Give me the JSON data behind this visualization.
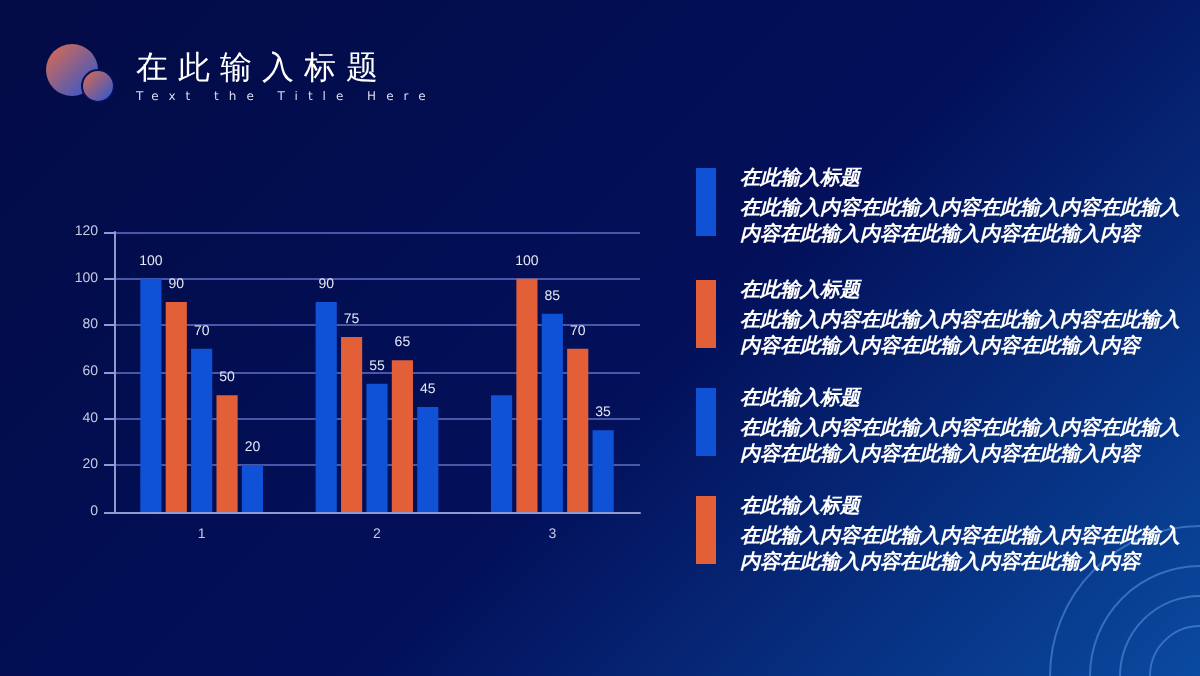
{
  "chart_data": {
    "type": "bar",
    "title": "在此输入标题",
    "subtitle": "Text the Title Here",
    "categories": [
      "1",
      "2",
      "3"
    ],
    "series": [
      {
        "color": "#0f52d6",
        "values": [
          100,
          90,
          50
        ],
        "value_labels": [
          "100",
          "90",
          null
        ]
      },
      {
        "color": "#e35f38",
        "values": [
          90,
          75,
          100
        ],
        "value_labels": [
          "90",
          "75",
          "100"
        ]
      },
      {
        "color": "#0f52d6",
        "values": [
          70,
          55,
          85
        ],
        "value_labels": [
          "70",
          "55",
          "85"
        ]
      },
      {
        "color": "#e35f38",
        "values": [
          50,
          65,
          70
        ],
        "value_labels": [
          "50",
          "65",
          "70"
        ]
      },
      {
        "color": "#0f52d6",
        "values": [
          20,
          45,
          35
        ],
        "value_labels": [
          "20",
          "45",
          "35"
        ]
      }
    ],
    "ylim": [
      0,
      120
    ],
    "yticks": [
      0,
      20,
      40,
      60,
      80,
      100,
      120
    ],
    "grid": "y",
    "annotations": [
      "在此输入标题",
      "在此输入内容在此输入内容在此输入内容在此输入内容在此输入内容在此输入内容在此输入内容",
      "在此输入标题",
      "在此输入内容在此输入内容在此输入内容在此输入内容在此输入内容在此输入内容在此输入内容",
      "在此输入标题",
      "在此输入内容在此输入内容在此输入内容在此输入内容在此输入内容在此输入内容在此输入内容",
      "在此输入标题",
      "在此输入内容在此输入内容在此输入内容在此输入内容在此输入内容在此输入内容在此输入内容"
    ]
  }
}
